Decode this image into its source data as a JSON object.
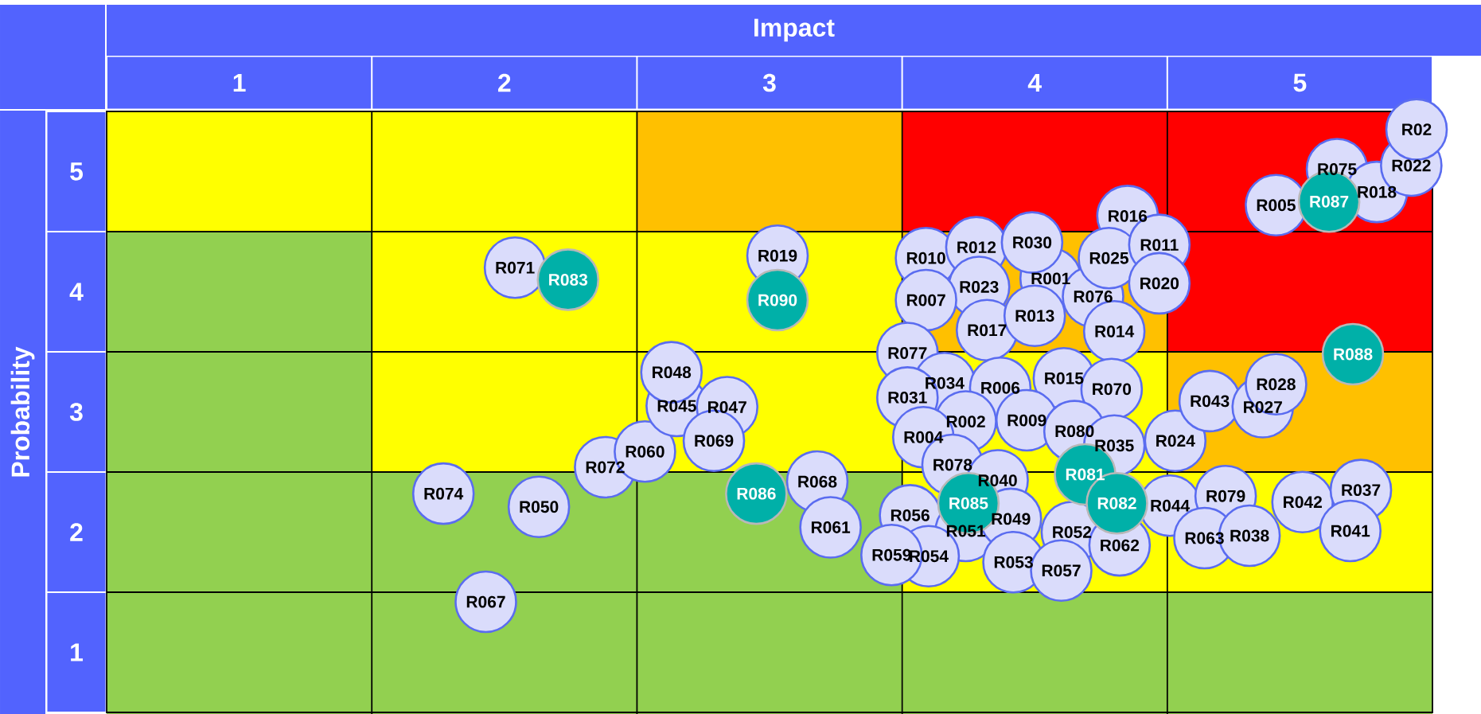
{
  "chart_data": {
    "type": "scatter",
    "xlabel": "Impact",
    "ylabel": "Probability",
    "xlim": [
      0.5,
      5.5
    ],
    "ylim": [
      0.5,
      5.5
    ],
    "xticks": [
      1,
      2,
      3,
      4,
      5
    ],
    "yticks": [
      1,
      2,
      3,
      4,
      5
    ],
    "marker": "circle",
    "series": [
      {
        "color": "#dadcfb",
        "x": [
          2.04,
          3.03,
          1.77,
          2.13,
          1.93,
          2.38,
          2.53,
          2.65,
          2.63,
          2.84,
          2.79,
          3.18,
          3.23,
          3.59,
          3.78,
          4.06,
          3.99,
          3.79,
          3.59,
          3.82,
          4.0,
          4.22,
          4.35,
          4.28,
          4.47,
          4.47,
          4.3,
          3.52,
          3.66,
          3.52,
          3.87,
          4.11,
          4.29,
          3.74,
          3.97,
          3.58,
          4.15,
          4.3,
          4.53,
          3.69,
          3.86,
          3.53,
          3.74,
          3.91,
          3.6,
          3.46,
          3.92,
          4.14,
          4.1,
          4.32,
          4.51,
          4.72,
          4.64,
          4.81,
          5.01,
          5.23,
          5.19,
          4.66,
          4.86,
          4.91,
          4.91,
          5.14,
          5.29,
          5.42,
          5.44
        ],
        "values": [
          4.2,
          4.3,
          2.32,
          2.21,
          1.42,
          2.54,
          2.67,
          3.05,
          3.33,
          3.04,
          2.76,
          2.42,
          2.04,
          4.28,
          4.37,
          4.11,
          4.41,
          4.04,
          3.93,
          3.68,
          3.8,
          3.96,
          4.63,
          4.28,
          4.39,
          4.07,
          3.67,
          3.49,
          3.24,
          3.12,
          3.2,
          3.28,
          3.19,
          2.92,
          2.93,
          2.79,
          2.84,
          2.72,
          2.76,
          2.56,
          2.43,
          2.14,
          2.01,
          2.11,
          1.8,
          1.81,
          1.75,
          2.0,
          1.68,
          1.89,
          2.22,
          2.3,
          1.95,
          1.97,
          2.25,
          2.35,
          2.01,
          3.09,
          3.04,
          3.23,
          4.72,
          5.02,
          4.83,
          5.05,
          5.35
        ],
        "value_labels": [
          "R071",
          "R019",
          "R074",
          "R050",
          "R067",
          "R072",
          "R060",
          "R045",
          "R048",
          "R047",
          "R069",
          "R068",
          "R061",
          "R010",
          "R012",
          "R001",
          "R030",
          "R023",
          "R007",
          "R017",
          "R013",
          "R076",
          "R016",
          "R025",
          "R011",
          "R020",
          "R014",
          "R077",
          "R034",
          "R031",
          "R006",
          "R015",
          "R070",
          "R002",
          "R009",
          "R004",
          "R080",
          "R035",
          "R024",
          "R078",
          "R040",
          "R056",
          "R051",
          "R049",
          "R054",
          "R059",
          "R053",
          "R052",
          "R057",
          "R062",
          "R044",
          "R079",
          "R063",
          "R038",
          "R042",
          "R037",
          "R041",
          "R043",
          "R027",
          "R028",
          "R005",
          "R075",
          "R018",
          "R022",
          "R02"
        ]
      },
      {
        "color": "#00b0a8",
        "x": [
          2.24,
          3.03,
          2.95,
          3.75,
          4.19,
          4.31,
          5.11,
          5.2
        ],
        "values": [
          4.1,
          3.93,
          2.32,
          2.24,
          2.48,
          2.24,
          4.75,
          3.48
        ],
        "value_labels": [
          "R083",
          "R090",
          "R086",
          "R085",
          "R081",
          "R082",
          "R087",
          "R088"
        ]
      }
    ]
  }
}
